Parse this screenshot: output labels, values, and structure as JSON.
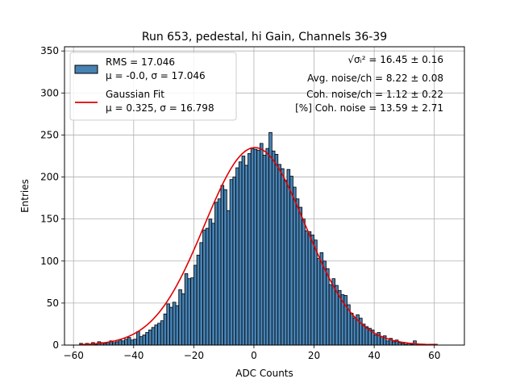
{
  "chart_data": {
    "type": "bar",
    "title": "Run 653, pedestal, hi Gain, Channels 36-39",
    "xlabel": "ADC Counts",
    "ylabel": "Entries",
    "xlim": [
      -63,
      70
    ],
    "ylim": [
      0,
      355
    ],
    "xticks": [
      -60,
      -40,
      -20,
      0,
      20,
      40,
      60
    ],
    "yticks": [
      0,
      50,
      100,
      150,
      200,
      250,
      300,
      350
    ],
    "grid": true,
    "bin_width": 1,
    "bin_start": -58,
    "counts": [
      2,
      1,
      2,
      1,
      3,
      1,
      4,
      3,
      2,
      3,
      5,
      3,
      4,
      6,
      5,
      7,
      9,
      6,
      7,
      16,
      10,
      12,
      15,
      18,
      21,
      24,
      26,
      29,
      37,
      49,
      45,
      51,
      47,
      66,
      61,
      85,
      79,
      80,
      95,
      107,
      122,
      137,
      139,
      150,
      145,
      170,
      174,
      190,
      185,
      160,
      197,
      200,
      211,
      218,
      225,
      214,
      228,
      234,
      233,
      232,
      240,
      226,
      234,
      253,
      231,
      227,
      215,
      210,
      196,
      209,
      201,
      188,
      174,
      164,
      150,
      136,
      135,
      131,
      125,
      103,
      110,
      100,
      91,
      72,
      79,
      71,
      65,
      60,
      59,
      48,
      38,
      32,
      36,
      32,
      25,
      22,
      20,
      18,
      12,
      15,
      10,
      11,
      5,
      8,
      4,
      6,
      3,
      2,
      1,
      2,
      1,
      5,
      1,
      1,
      1,
      1,
      1,
      1,
      1
    ],
    "fit_curve": {
      "label": "Gaussian Fit",
      "mu": 0.325,
      "sigma": 16.798,
      "amplitude": 235,
      "color": "#e00000"
    },
    "bar_color": "#4682b4",
    "legend": {
      "placement": "top-left",
      "hist_label_line1": "RMS = 17.046",
      "hist_label_line2": "μ = -0.0, σ = 17.046",
      "fit_label_line1": "Gaussian Fit",
      "fit_label_line2": "μ = 0.325, σ = 16.798"
    },
    "annotations": [
      "√σᵢ² = 16.45 ± 0.16",
      "Avg. noise/ch = 8.22 ± 0.08",
      "Coh. noise/ch = 1.12 ± 0.22",
      "[%] Coh. noise = 13.59 ± 2.71"
    ]
  }
}
